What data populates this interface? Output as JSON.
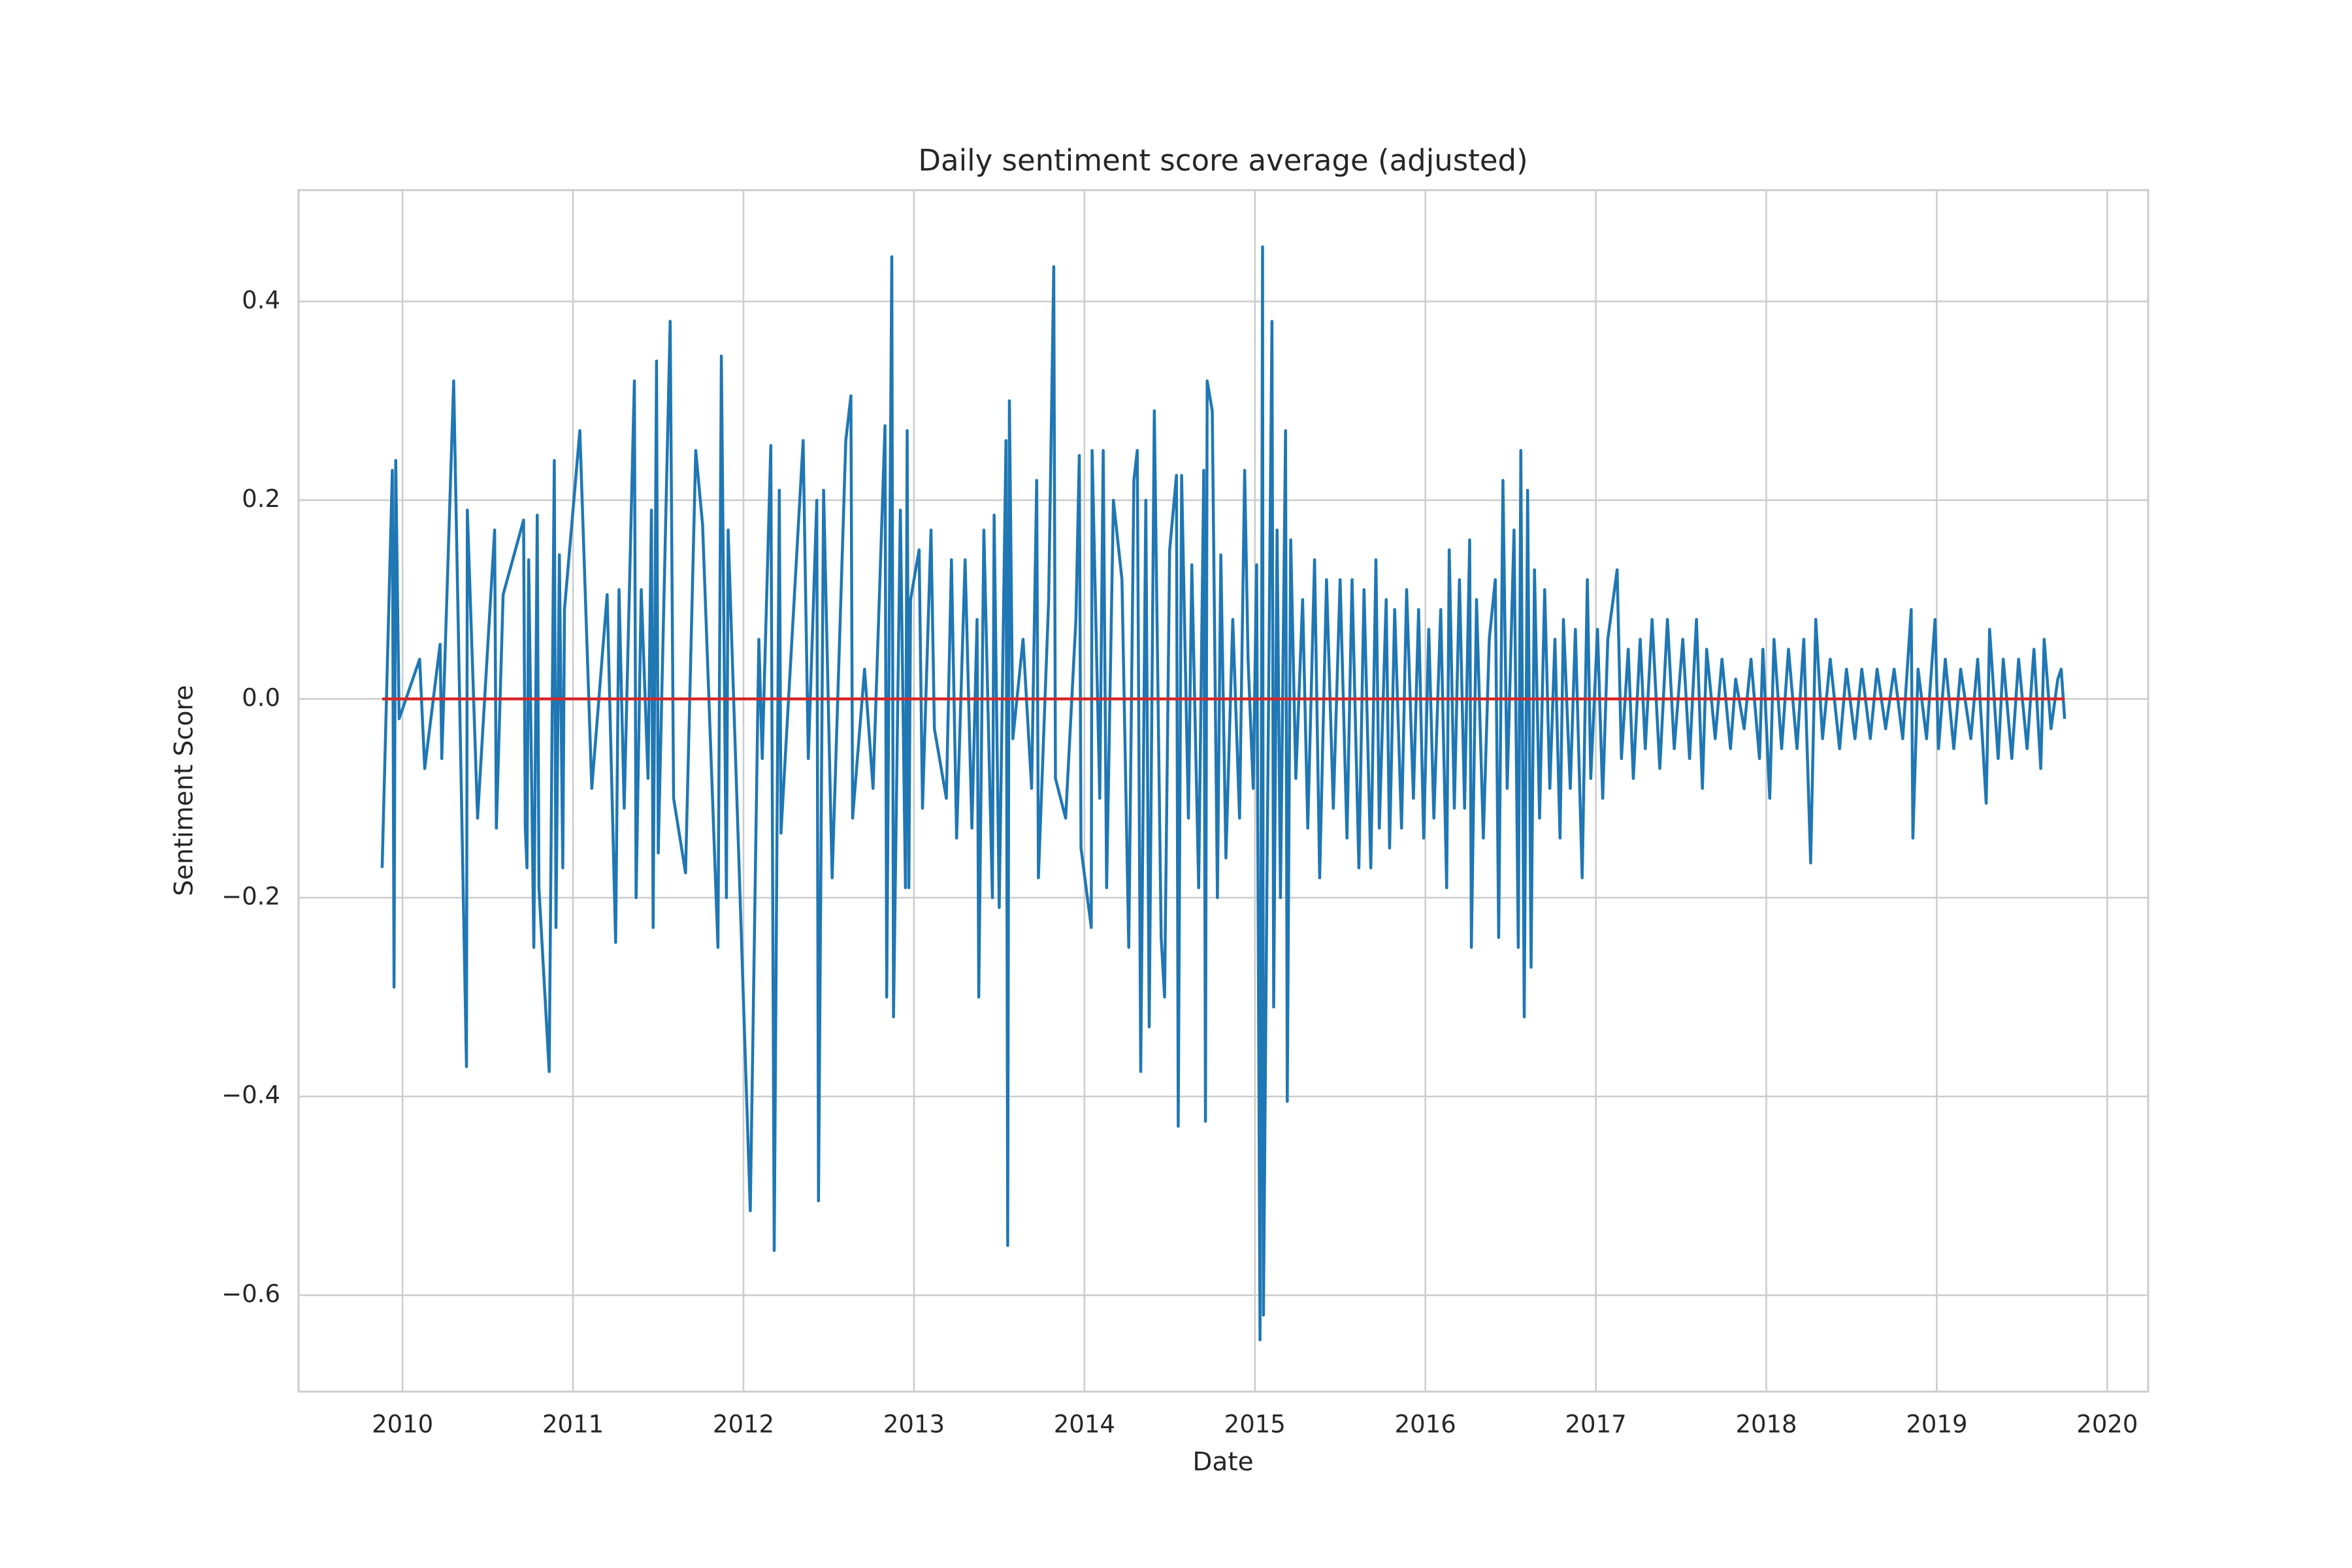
{
  "chart_data": {
    "type": "line",
    "title": "Daily sentiment score average (adjusted)",
    "xlabel": "Date",
    "ylabel": "Sentiment Score",
    "xlim": [
      2009.39,
      2020.24
    ],
    "ylim": [
      -0.697,
      0.512
    ],
    "xticks": [
      2010,
      2011,
      2012,
      2013,
      2014,
      2015,
      2016,
      2017,
      2018,
      2019,
      2020
    ],
    "yticks": [
      {
        "value": -0.6,
        "label": "−0.6"
      },
      {
        "value": -0.4,
        "label": "−0.4"
      },
      {
        "value": -0.2,
        "label": "−0.2"
      },
      {
        "value": 0,
        "label": "0.0"
      },
      0.2,
      0.4
    ],
    "grid": true,
    "series": [
      {
        "color": "#1f77b4",
        "x": [
          2009.88,
          2009.94,
          2009.95,
          2009.96,
          2009.98,
          2010.1,
          2010.13,
          2010.22,
          2010.23,
          2010.3,
          2010.375,
          2010.38,
          2010.44,
          2010.54,
          2010.55,
          2010.59,
          2010.71,
          2010.72,
          2010.73,
          2010.74,
          2010.77,
          2010.79,
          2010.8,
          2010.86,
          2010.89,
          2010.9,
          2010.92,
          2010.94,
          2010.95,
          2011.04,
          2011.11,
          2011.2,
          2011.25,
          2011.27,
          2011.3,
          2011.36,
          2011.37,
          2011.4,
          2011.44,
          2011.46,
          2011.47,
          2011.49,
          2011.5,
          2011.57,
          2011.59,
          2011.66,
          2011.72,
          2011.76,
          2011.85,
          2011.87,
          2011.9,
          2011.91,
          2012.04,
          2012.09,
          2012.11,
          2012.16,
          2012.18,
          2012.21,
          2012.22,
          2012.35,
          2012.38,
          2012.43,
          2012.44,
          2012.47,
          2012.52,
          2012.6,
          2012.63,
          2012.64,
          2012.71,
          2012.76,
          2012.83,
          2012.84,
          2012.87,
          2012.88,
          2012.92,
          2012.95,
          2012.96,
          2012.97,
          2012.98,
          2013.03,
          2013.05,
          2013.1,
          2013.12,
          2013.19,
          2013.22,
          2013.25,
          2013.3,
          2013.34,
          2013.37,
          2013.38,
          2013.41,
          2013.46,
          2013.47,
          2013.5,
          2013.54,
          2013.55,
          2013.56,
          2013.58,
          2013.64,
          2013.69,
          2013.72,
          2013.73,
          2013.79,
          2013.82,
          2013.83,
          2013.89,
          2013.95,
          2013.97,
          2013.98,
          2014.04,
          2014.045,
          2014.09,
          2014.11,
          2014.13,
          2014.17,
          2014.22,
          2014.26,
          2014.29,
          2014.31,
          2014.33,
          2014.36,
          2014.38,
          2014.41,
          2014.45,
          2014.47,
          2014.5,
          2014.54,
          2014.55,
          2014.57,
          2014.61,
          2014.63,
          2014.67,
          2014.7,
          2014.71,
          2014.72,
          2014.75,
          2014.78,
          2014.8,
          2014.83,
          2014.87,
          2014.91,
          2014.94,
          2014.96,
          2014.99,
          2015.01,
          2015.03,
          2015.045,
          2015.05,
          2015.07,
          2015.1,
          2015.11,
          2015.13,
          2015.15,
          2015.18,
          2015.19,
          2015.21,
          2015.24,
          2015.28,
          2015.31,
          2015.35,
          2015.38,
          2015.42,
          2015.46,
          2015.5,
          2015.54,
          2015.57,
          2015.61,
          2015.64,
          2015.68,
          2015.71,
          2015.73,
          2015.77,
          2015.79,
          2015.82,
          2015.86,
          2015.89,
          2015.93,
          2015.96,
          2015.99,
          2016.02,
          2016.05,
          2016.09,
          2016.125,
          2016.14,
          2016.17,
          2016.2,
          2016.23,
          2016.26,
          2016.27,
          2016.3,
          2016.34,
          2016.375,
          2016.41,
          2016.43,
          2016.455,
          2016.48,
          2016.52,
          2016.545,
          2016.56,
          2016.58,
          2016.6,
          2016.62,
          2016.64,
          2016.67,
          2016.7,
          2016.73,
          2016.76,
          2016.79,
          2016.81,
          2016.85,
          2016.88,
          2016.92,
          2016.95,
          2016.97,
          2017.01,
          2017.04,
          2017.07,
          2017.125,
          2017.15,
          2017.19,
          2017.22,
          2017.26,
          2017.29,
          2017.33,
          2017.375,
          2017.42,
          2017.46,
          2017.51,
          2017.55,
          2017.59,
          2017.625,
          2017.65,
          2017.7,
          2017.74,
          2017.79,
          2017.82,
          2017.87,
          2017.91,
          2017.96,
          2017.98,
          2018.02,
          2018.045,
          2018.09,
          2018.13,
          2018.18,
          2018.22,
          2018.26,
          2018.29,
          2018.33,
          2018.375,
          2018.43,
          2018.47,
          2018.52,
          2018.56,
          2018.61,
          2018.65,
          2018.7,
          2018.75,
          2018.8,
          2018.85,
          2018.86,
          2018.89,
          2018.94,
          2018.99,
          2019.01,
          2019.05,
          2019.1,
          2019.14,
          2019.2,
          2019.24,
          2019.29,
          2019.31,
          2019.36,
          2019.39,
          2019.44,
          2019.48,
          2019.53,
          2019.57,
          2019.61,
          2019.63,
          2019.67,
          2019.71,
          2019.73,
          2019.75
        ],
        "values": [
          -0.17,
          0.23,
          -0.29,
          0.24,
          -0.02,
          0.04,
          -0.07,
          0.055,
          -0.06,
          0.32,
          -0.37,
          0.19,
          -0.12,
          0.17,
          -0.13,
          0.105,
          0.18,
          -0.13,
          -0.17,
          0.14,
          -0.25,
          0.185,
          -0.19,
          -0.375,
          0.24,
          -0.23,
          0.145,
          -0.17,
          0.09,
          0.27,
          -0.09,
          0.105,
          -0.245,
          0.11,
          -0.11,
          0.32,
          -0.2,
          0.11,
          -0.08,
          0.19,
          -0.23,
          0.34,
          -0.155,
          0.38,
          -0.1,
          -0.175,
          0.25,
          0.175,
          -0.25,
          0.345,
          -0.2,
          0.17,
          -0.515,
          0.06,
          -0.06,
          0.255,
          -0.555,
          0.21,
          -0.135,
          0.26,
          -0.06,
          0.2,
          -0.505,
          0.21,
          -0.18,
          0.26,
          0.305,
          -0.12,
          0.03,
          -0.09,
          0.275,
          -0.3,
          0.445,
          -0.32,
          0.19,
          -0.19,
          0.27,
          -0.19,
          0.1,
          0.15,
          -0.11,
          0.17,
          -0.03,
          -0.1,
          0.14,
          -0.14,
          0.14,
          -0.13,
          0.08,
          -0.3,
          0.17,
          -0.2,
          0.185,
          -0.21,
          0.26,
          -0.55,
          0.3,
          -0.04,
          0.06,
          -0.09,
          0.22,
          -0.18,
          0.1,
          0.435,
          -0.08,
          -0.12,
          0.08,
          0.245,
          -0.15,
          -0.23,
          0.25,
          -0.1,
          0.25,
          -0.19,
          0.2,
          0.12,
          -0.25,
          0.22,
          0.25,
          -0.375,
          0.2,
          -0.33,
          0.29,
          -0.24,
          -0.3,
          0.15,
          0.225,
          -0.43,
          0.225,
          -0.12,
          0.135,
          -0.19,
          0.23,
          -0.425,
          0.32,
          0.29,
          -0.2,
          0.145,
          -0.16,
          0.08,
          -0.12,
          0.23,
          0.04,
          -0.09,
          0.135,
          -0.645,
          0.455,
          -0.62,
          -0.2,
          0.38,
          -0.31,
          0.17,
          -0.2,
          0.27,
          -0.405,
          0.16,
          -0.08,
          0.1,
          -0.13,
          0.14,
          -0.18,
          0.12,
          -0.11,
          0.12,
          -0.14,
          0.12,
          -0.17,
          0.11,
          -0.17,
          0.14,
          -0.13,
          0.1,
          -0.15,
          0.09,
          -0.13,
          0.11,
          -0.1,
          0.09,
          -0.14,
          0.07,
          -0.12,
          0.09,
          -0.19,
          0.15,
          -0.11,
          0.12,
          -0.11,
          0.16,
          -0.25,
          0.1,
          -0.14,
          0.06,
          0.12,
          -0.24,
          0.22,
          -0.09,
          0.17,
          -0.25,
          0.25,
          -0.32,
          0.21,
          -0.27,
          0.13,
          -0.12,
          0.11,
          -0.09,
          0.06,
          -0.14,
          0.08,
          -0.09,
          0.07,
          -0.18,
          0.12,
          -0.08,
          0.07,
          -0.1,
          0.06,
          0.13,
          -0.06,
          0.05,
          -0.08,
          0.06,
          -0.05,
          0.08,
          -0.07,
          0.08,
          -0.05,
          0.06,
          -0.06,
          0.08,
          -0.09,
          0.05,
          -0.04,
          0.04,
          -0.05,
          0.02,
          -0.03,
          0.04,
          -0.06,
          0.05,
          -0.1,
          0.06,
          -0.05,
          0.05,
          -0.05,
          0.06,
          -0.165,
          0.08,
          -0.04,
          0.04,
          -0.05,
          0.03,
          -0.04,
          0.03,
          -0.04,
          0.03,
          -0.03,
          0.03,
          -0.04,
          0.09,
          -0.14,
          0.03,
          -0.04,
          0.08,
          -0.05,
          0.04,
          -0.05,
          0.03,
          -0.04,
          0.04,
          -0.105,
          0.07,
          -0.06,
          0.04,
          -0.06,
          0.04,
          -0.05,
          0.05,
          -0.07,
          0.06,
          -0.03,
          0.02,
          0.03,
          -0.02
        ]
      },
      {
        "color": "#d62728",
        "x": [
          2009.88,
          2019.75
        ],
        "values": [
          0,
          0
        ]
      }
    ]
  }
}
